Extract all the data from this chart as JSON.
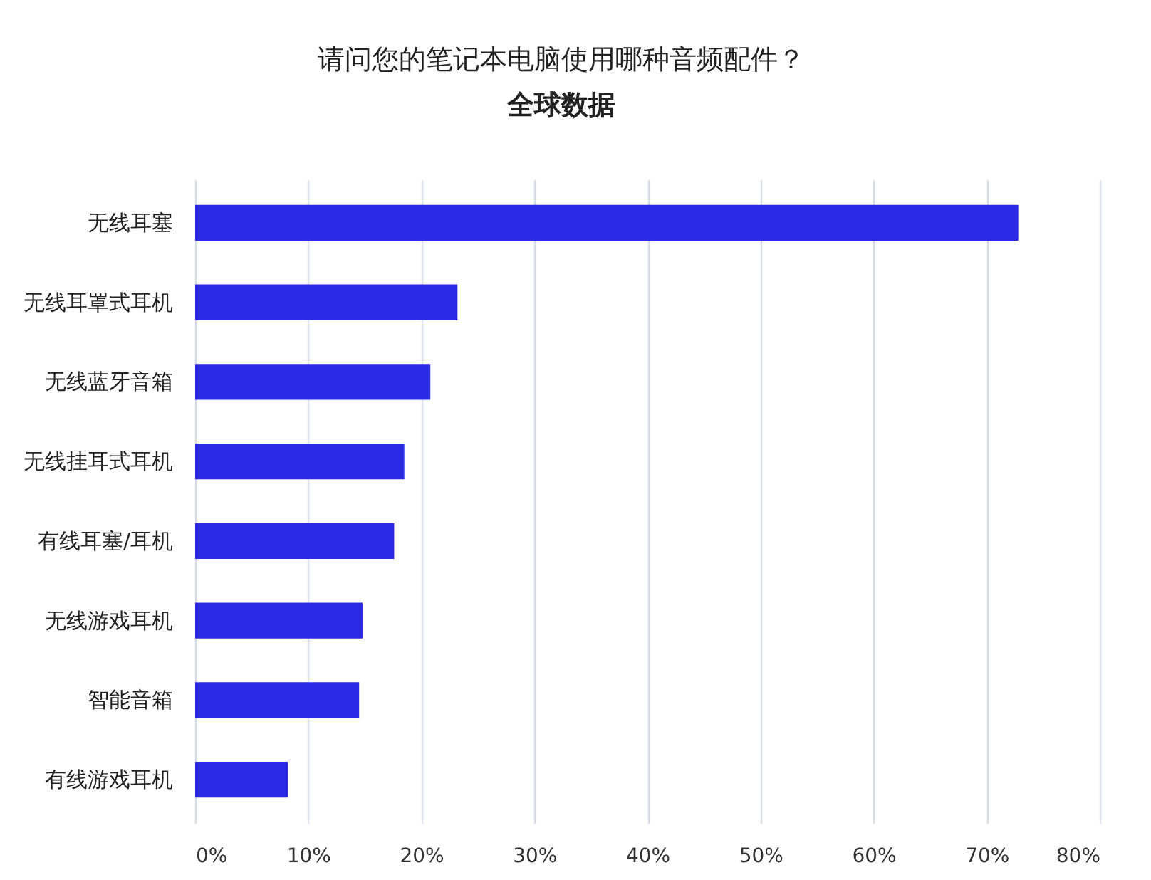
{
  "chart_data": {
    "type": "bar",
    "orientation": "horizontal",
    "title": "请问您的笔记本电脑使用哪种音频配件？",
    "subtitle": "全球数据",
    "categories": [
      "无线耳塞",
      "无线耳罩式耳机",
      "无线蓝牙音箱",
      "无线挂耳式耳机",
      "有线耳塞/耳机",
      "无线游戏耳机",
      "智能音箱",
      "有线游戏耳机"
    ],
    "values": [
      72.8,
      23.2,
      20.8,
      18.5,
      17.6,
      14.8,
      14.5,
      8.2
    ],
    "color": "#2b2be6",
    "xlim": [
      0,
      80
    ],
    "xticks": [
      {
        "value": 0,
        "label": "0%"
      },
      {
        "value": 10,
        "label": "10%"
      },
      {
        "value": 20,
        "label": "20%"
      },
      {
        "value": 30,
        "label": "30%"
      },
      {
        "value": 40,
        "label": "40%"
      },
      {
        "value": 50,
        "label": "50%"
      },
      {
        "value": 60,
        "label": "60%"
      },
      {
        "value": 70,
        "label": "70%"
      },
      {
        "value": 80,
        "label": "80%"
      }
    ],
    "grid": "x"
  }
}
